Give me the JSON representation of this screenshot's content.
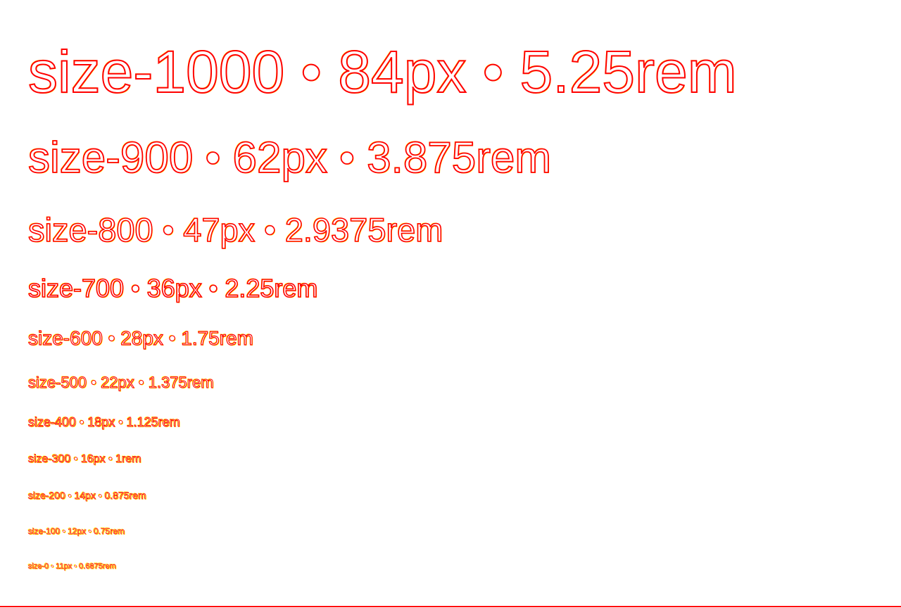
{
  "colors": {
    "background": "#ffffff",
    "outline": "#ff0000",
    "highlight": "#ffff00"
  },
  "type_scale": [
    {
      "label": "size-1000 • 84px • 5.25rem"
    },
    {
      "label": "size-900 • 62px • 3.875rem"
    },
    {
      "label": "size-800 • 47px • 2.9375rem"
    },
    {
      "label": "size-700 • 36px • 2.25rem"
    },
    {
      "label": "size-600 • 28px • 1.75rem"
    },
    {
      "label": "size-500 • 22px • 1.375rem"
    },
    {
      "label": "size-400 • 18px • 1.125rem"
    },
    {
      "label": "size-300 • 16px • 1rem"
    },
    {
      "label": "size-200 • 14px • 0.875rem"
    },
    {
      "label": "size-100 • 12px • 0.75rem"
    },
    {
      "label": "size-0 • 11px • 0.6875rem"
    }
  ]
}
